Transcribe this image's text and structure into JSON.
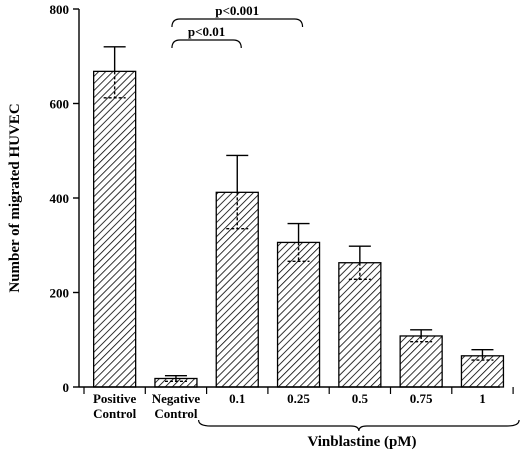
{
  "chart_data": {
    "type": "bar",
    "categories": [
      "Positive\nControl",
      "Negative\nControl",
      "0.1",
      "0.25",
      "0.5",
      "0.75",
      "1"
    ],
    "values": [
      668,
      18,
      412,
      306,
      263,
      108,
      66
    ],
    "error_upper": [
      720,
      24,
      490,
      346,
      298,
      121,
      79
    ],
    "error_lower": [
      612,
      12,
      335,
      266,
      228,
      96,
      57
    ],
    "title": "",
    "ylabel": "Number of migrated HUVEC",
    "xlabel": "",
    "ylim": [
      0,
      800
    ],
    "yticks": [
      0,
      200,
      400,
      600,
      800
    ],
    "group_label": "Vinblastine (pM)",
    "grid": false,
    "bar_fill": "hatched",
    "colors": {
      "bar_stroke": "#000000",
      "hatch": "#000000",
      "background": "#ffffff"
    },
    "annotations": [
      {
        "text": "p<0.001",
        "from_category": 1,
        "to_category": 3
      },
      {
        "text": "p<0.01",
        "from_category": 1,
        "to_category": 2
      }
    ]
  }
}
